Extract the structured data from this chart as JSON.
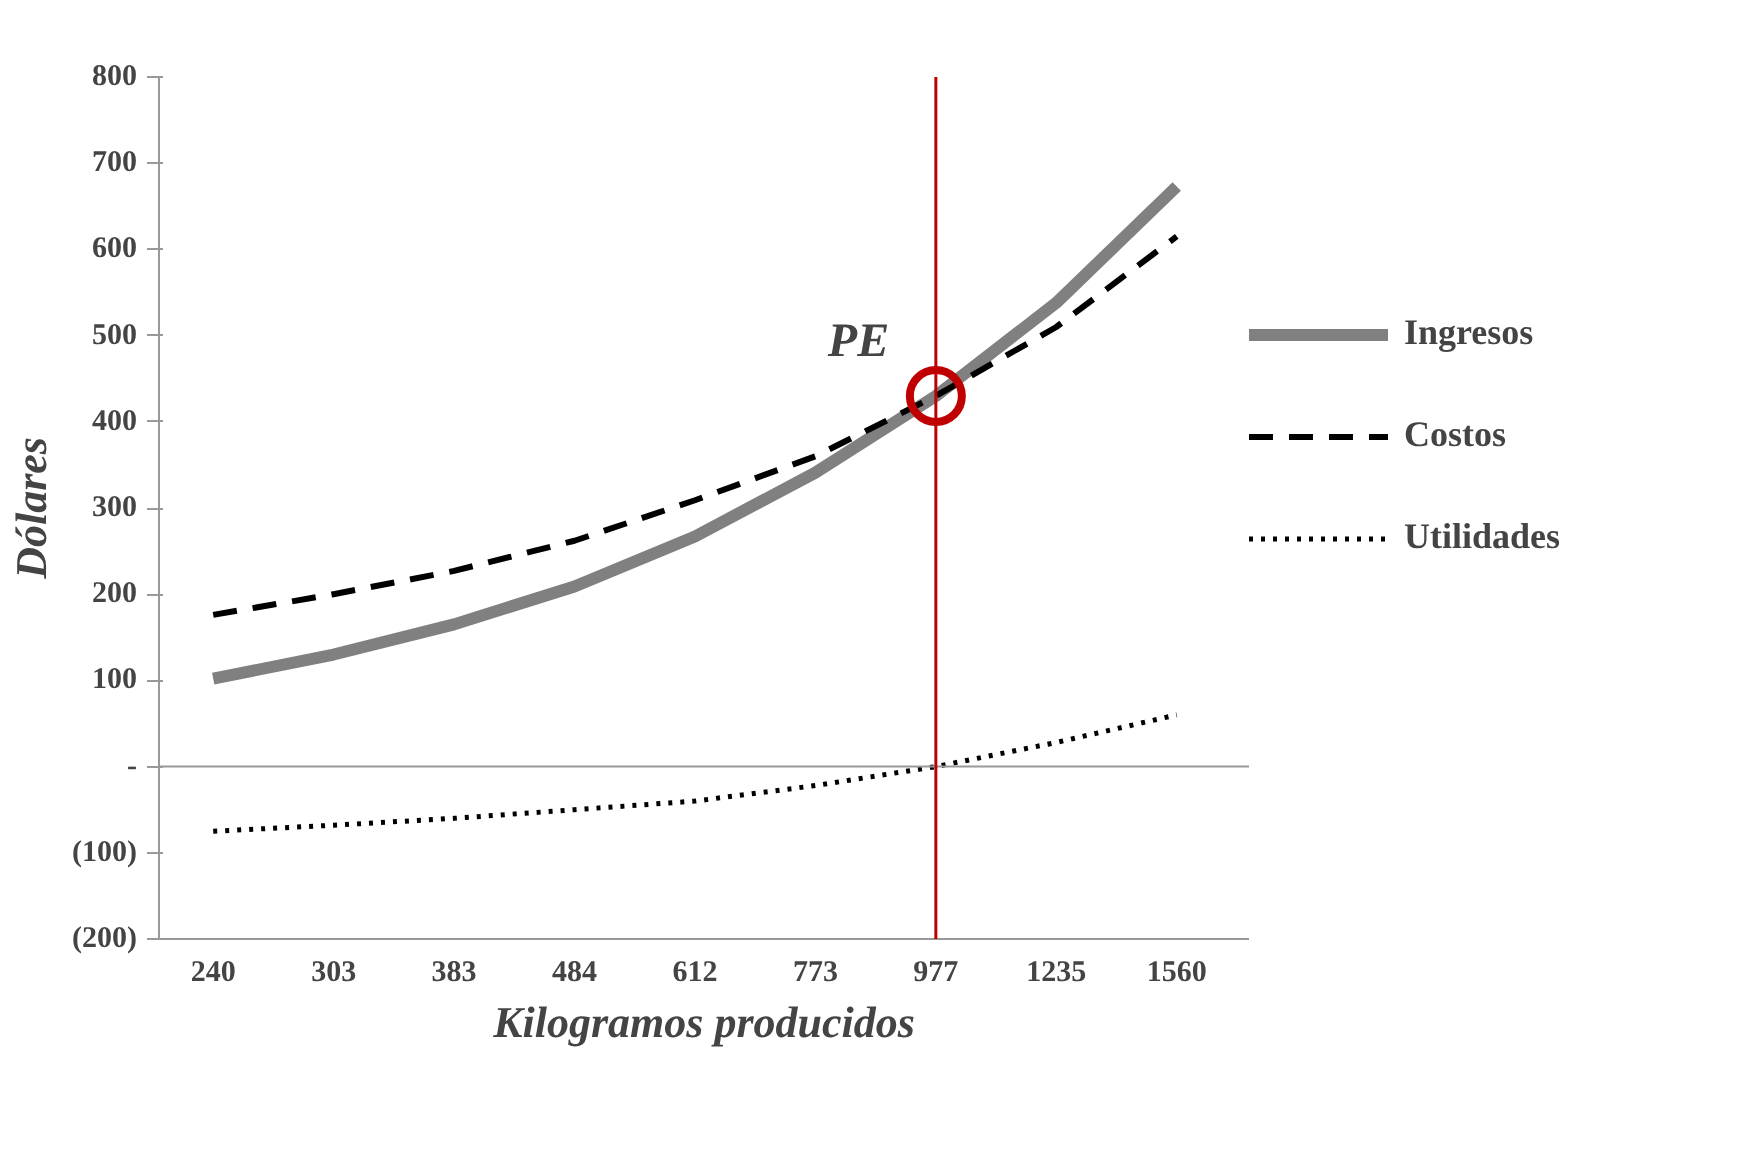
{
  "chart_data": {
    "type": "line",
    "xlabel": "Kilogramos producidos",
    "ylabel": "Dólares",
    "categories": [
      "240",
      "303",
      "383",
      "484",
      "612",
      "773",
      "977",
      "1235",
      "1560"
    ],
    "series": [
      {
        "name": "Ingresos",
        "color": "#808080",
        "line_style": "solid",
        "values": [
          102,
          130,
          165,
          209,
          267,
          341,
          430,
          538,
          673
        ]
      },
      {
        "name": "Costos",
        "color": "#000000",
        "line_style": "dashed",
        "values": [
          176,
          200,
          227,
          262,
          309,
          360,
          430,
          510,
          615
        ]
      },
      {
        "name": "Utilidades",
        "color": "#000000",
        "line_style": "dotted",
        "values": [
          -75,
          -68,
          -60,
          -50,
          -40,
          -22,
          0,
          28,
          60
        ]
      }
    ],
    "ylim": [
      -200,
      800
    ],
    "yticks": [
      {
        "value": -200,
        "label": "(200)"
      },
      {
        "value": -100,
        "label": "(100)"
      },
      {
        "value": 0,
        "label": "-"
      },
      100,
      200,
      300,
      400,
      500,
      600,
      700,
      800
    ],
    "ref_lines": [
      {
        "axis": "x",
        "value": "977",
        "color": "#c00000"
      }
    ],
    "annotations": [
      {
        "text": "PE",
        "x": "977",
        "y": 430
      }
    ],
    "grid": false,
    "legend": "right",
    "marker": "none"
  }
}
